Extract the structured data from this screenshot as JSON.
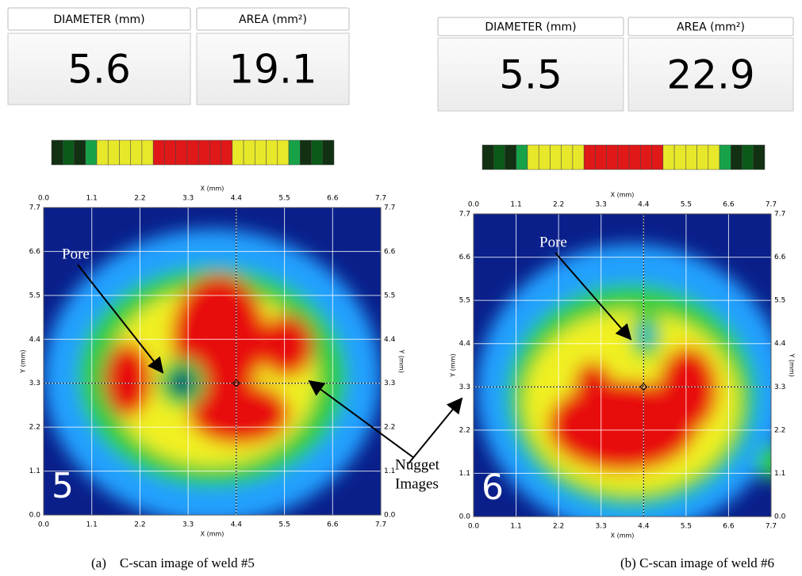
{
  "panels": [
    {
      "diameter_label": "DIAMETER (mm)",
      "area_label": "AREA (mm²)",
      "diameter": "5.6",
      "area": "19.1",
      "x_axis_label": "X (mm)",
      "y_axis_label": "Y (mm)",
      "ticks": [
        "0.0",
        "1.1",
        "2.2",
        "3.3",
        "4.4",
        "5.5",
        "6.6",
        "7.7"
      ],
      "weld_number": "5",
      "pore_label": "Pore",
      "caption": "(a)    C-scan image of weld #5"
    },
    {
      "diameter_label": "DIAMETER (mm)",
      "area_label": "AREA (mm²)",
      "diameter": "5.5",
      "area": "22.9",
      "x_axis_label": "X (mm)",
      "y_axis_label": "Y (mm)",
      "ticks": [
        "0.0",
        "1.1",
        "2.2",
        "3.3",
        "4.4",
        "5.5",
        "6.6",
        "7.7"
      ],
      "weld_number": "6",
      "pore_label": "Pore",
      "caption": "(b) C-scan image of weld #6"
    }
  ],
  "annotation": [
    "Nugget",
    "Images"
  ]
}
